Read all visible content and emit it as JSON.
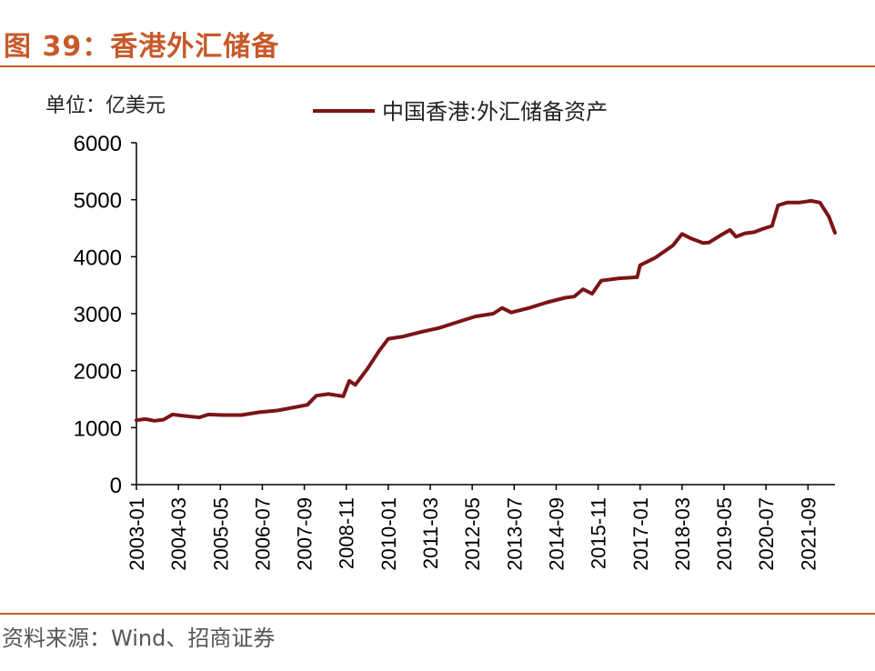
{
  "figure": {
    "title": "图 39：香港外汇储备",
    "source": "资料来源：Wind、招商证券",
    "accent_color": "#c65a2a"
  },
  "chart_data": {
    "type": "line",
    "unit_label": "单位：亿美元",
    "title": "",
    "xlabel": "",
    "ylabel": "",
    "ylim": [
      0,
      6000
    ],
    "yticks": [
      0,
      1000,
      2000,
      3000,
      4000,
      5000,
      6000
    ],
    "xlim": [
      "2003-01",
      "2022-06"
    ],
    "xticks": [
      "2003-01",
      "2004-03",
      "2005-05",
      "2006-07",
      "2007-09",
      "2008-11",
      "2010-01",
      "2011-03",
      "2012-05",
      "2013-07",
      "2014-09",
      "2015-11",
      "2017-01",
      "2018-03",
      "2019-05",
      "2020-07",
      "2021-09"
    ],
    "legend_position": "top-center",
    "grid": false,
    "series": [
      {
        "name": "中国香港:外汇储备资产",
        "color": "#7b1416",
        "points": [
          [
            "2003-01",
            1130
          ],
          [
            "2003-04",
            1150
          ],
          [
            "2003-07",
            1120
          ],
          [
            "2003-10",
            1140
          ],
          [
            "2004-01",
            1230
          ],
          [
            "2004-06",
            1200
          ],
          [
            "2004-10",
            1180
          ],
          [
            "2005-01",
            1230
          ],
          [
            "2005-06",
            1220
          ],
          [
            "2005-12",
            1220
          ],
          [
            "2006-06",
            1270
          ],
          [
            "2006-12",
            1300
          ],
          [
            "2007-06",
            1360
          ],
          [
            "2007-10",
            1400
          ],
          [
            "2008-01",
            1560
          ],
          [
            "2008-05",
            1590
          ],
          [
            "2008-10",
            1550
          ],
          [
            "2008-12",
            1820
          ],
          [
            "2009-02",
            1750
          ],
          [
            "2009-06",
            2030
          ],
          [
            "2009-10",
            2350
          ],
          [
            "2010-01",
            2560
          ],
          [
            "2010-06",
            2600
          ],
          [
            "2010-12",
            2680
          ],
          [
            "2011-06",
            2750
          ],
          [
            "2011-12",
            2850
          ],
          [
            "2012-06",
            2950
          ],
          [
            "2012-12",
            3000
          ],
          [
            "2013-03",
            3100
          ],
          [
            "2013-06",
            3020
          ],
          [
            "2013-12",
            3100
          ],
          [
            "2014-06",
            3200
          ],
          [
            "2014-12",
            3280
          ],
          [
            "2015-03",
            3300
          ],
          [
            "2015-06",
            3430
          ],
          [
            "2015-09",
            3350
          ],
          [
            "2015-12",
            3580
          ],
          [
            "2016-06",
            3620
          ],
          [
            "2016-12",
            3640
          ],
          [
            "2017-01",
            3850
          ],
          [
            "2017-06",
            3980
          ],
          [
            "2017-12",
            4200
          ],
          [
            "2018-03",
            4400
          ],
          [
            "2018-06",
            4320
          ],
          [
            "2018-10",
            4240
          ],
          [
            "2018-12",
            4250
          ],
          [
            "2019-04",
            4380
          ],
          [
            "2019-07",
            4470
          ],
          [
            "2019-09",
            4350
          ],
          [
            "2019-12",
            4410
          ],
          [
            "2020-03",
            4430
          ],
          [
            "2020-06",
            4490
          ],
          [
            "2020-09",
            4540
          ],
          [
            "2020-11",
            4900
          ],
          [
            "2021-02",
            4950
          ],
          [
            "2021-06",
            4950
          ],
          [
            "2021-10",
            4980
          ],
          [
            "2022-01",
            4950
          ],
          [
            "2022-04",
            4700
          ],
          [
            "2022-06",
            4420
          ]
        ]
      }
    ]
  }
}
